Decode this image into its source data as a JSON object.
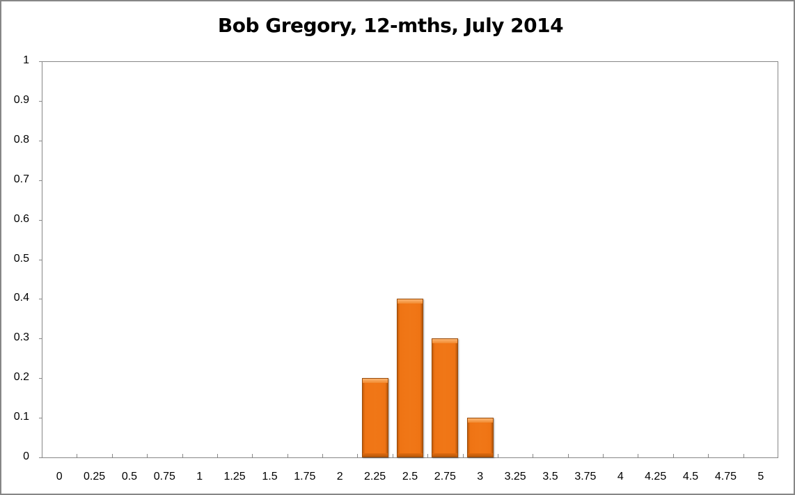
{
  "chart_data": {
    "type": "bar",
    "title": "Bob Gregory, 12-mths, July 2014",
    "xlabel": "",
    "ylabel": "",
    "categories": [
      "0",
      "0.25",
      "0.5",
      "0.75",
      "1",
      "1.25",
      "1.5",
      "1.75",
      "2",
      "2.25",
      "2.5",
      "2.75",
      "3",
      "3.25",
      "3.5",
      "3.75",
      "4",
      "4.25",
      "4.5",
      "4.75",
      "5"
    ],
    "values": [
      0,
      0,
      0,
      0,
      0,
      0,
      0,
      0,
      0,
      0.2,
      0.4,
      0.3,
      0.1,
      0,
      0,
      0,
      0,
      0,
      0,
      0,
      0
    ],
    "ylim": [
      0,
      1
    ],
    "yticks": [
      "0",
      "0.1",
      "0.2",
      "0.3",
      "0.4",
      "0.5",
      "0.6",
      "0.7",
      "0.8",
      "0.9",
      "1"
    ],
    "grid": false,
    "legend": "none",
    "bar_color": "#F07717"
  }
}
